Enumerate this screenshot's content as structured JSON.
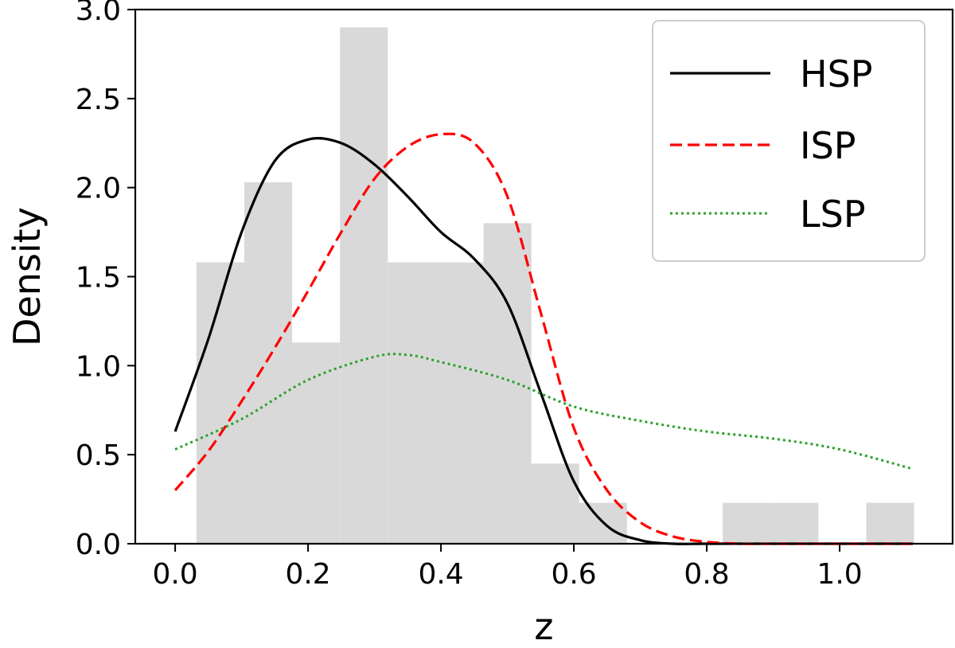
{
  "chart_data": {
    "type": "histogram+line",
    "xlabel": "z",
    "ylabel": "Density",
    "xlim": [
      -0.06,
      1.17
    ],
    "ylim": [
      0.0,
      3.0
    ],
    "x_ticks": [
      "0.0",
      "0.2",
      "0.4",
      "0.6",
      "0.8",
      "1.0"
    ],
    "x_tick_values": [
      0.0,
      0.2,
      0.4,
      0.6,
      0.8,
      1.0
    ],
    "y_ticks": [
      "0.0",
      "0.5",
      "1.0",
      "1.5",
      "2.0",
      "2.5",
      "3.0"
    ],
    "y_tick_values": [
      0.0,
      0.5,
      1.0,
      1.5,
      2.0,
      2.5,
      3.0
    ],
    "grid": false,
    "legend_position": "top-right",
    "histogram": {
      "color": "#d9d9d9",
      "bins": [
        {
          "x0": 0.032,
          "x1": 0.104,
          "density": 1.58
        },
        {
          "x0": 0.104,
          "x1": 0.176,
          "density": 2.03
        },
        {
          "x0": 0.176,
          "x1": 0.248,
          "density": 1.13
        },
        {
          "x0": 0.248,
          "x1": 0.32,
          "density": 2.9
        },
        {
          "x0": 0.32,
          "x1": 0.392,
          "density": 1.58
        },
        {
          "x0": 0.392,
          "x1": 0.464,
          "density": 1.58
        },
        {
          "x0": 0.464,
          "x1": 0.536,
          "density": 1.8
        },
        {
          "x0": 0.536,
          "x1": 0.608,
          "density": 0.45
        },
        {
          "x0": 0.608,
          "x1": 0.68,
          "density": 0.23
        },
        {
          "x0": 0.68,
          "x1": 0.752,
          "density": 0.0
        },
        {
          "x0": 0.752,
          "x1": 0.824,
          "density": 0.0
        },
        {
          "x0": 0.824,
          "x1": 0.896,
          "density": 0.23
        },
        {
          "x0": 0.896,
          "x1": 0.968,
          "density": 0.23
        },
        {
          "x0": 0.968,
          "x1": 1.04,
          "density": 0.0
        },
        {
          "x0": 1.04,
          "x1": 1.112,
          "density": 0.23
        }
      ]
    },
    "series": [
      {
        "name": "HSP",
        "color": "#000000",
        "dash": "solid",
        "x": [
          0.0,
          0.05,
          0.1,
          0.15,
          0.2,
          0.25,
          0.3,
          0.35,
          0.4,
          0.45,
          0.5,
          0.55,
          0.6,
          0.65,
          0.7,
          0.75,
          0.8,
          0.9,
          1.0,
          1.11
        ],
        "y": [
          0.63,
          1.15,
          1.75,
          2.15,
          2.27,
          2.25,
          2.13,
          1.95,
          1.75,
          1.6,
          1.35,
          0.85,
          0.35,
          0.1,
          0.02,
          0.0,
          0.0,
          0.0,
          0.0,
          0.0
        ]
      },
      {
        "name": "ISP",
        "color": "#ff0000",
        "dash": "dashed",
        "x": [
          0.0,
          0.05,
          0.1,
          0.15,
          0.2,
          0.25,
          0.3,
          0.35,
          0.4,
          0.45,
          0.5,
          0.55,
          0.6,
          0.65,
          0.7,
          0.75,
          0.8,
          0.85,
          0.9,
          1.0,
          1.11
        ],
        "y": [
          0.3,
          0.52,
          0.8,
          1.1,
          1.42,
          1.75,
          2.05,
          2.23,
          2.3,
          2.25,
          1.95,
          1.3,
          0.65,
          0.3,
          0.12,
          0.04,
          0.01,
          0.0,
          0.0,
          0.0,
          0.0
        ]
      },
      {
        "name": "LSP",
        "color": "#2ca02c",
        "dash": "dotted",
        "x": [
          0.0,
          0.1,
          0.2,
          0.3,
          0.35,
          0.4,
          0.5,
          0.6,
          0.7,
          0.8,
          0.9,
          1.0,
          1.11
        ],
        "y": [
          0.53,
          0.7,
          0.92,
          1.05,
          1.06,
          1.02,
          0.92,
          0.77,
          0.69,
          0.63,
          0.59,
          0.53,
          0.42
        ]
      }
    ]
  }
}
